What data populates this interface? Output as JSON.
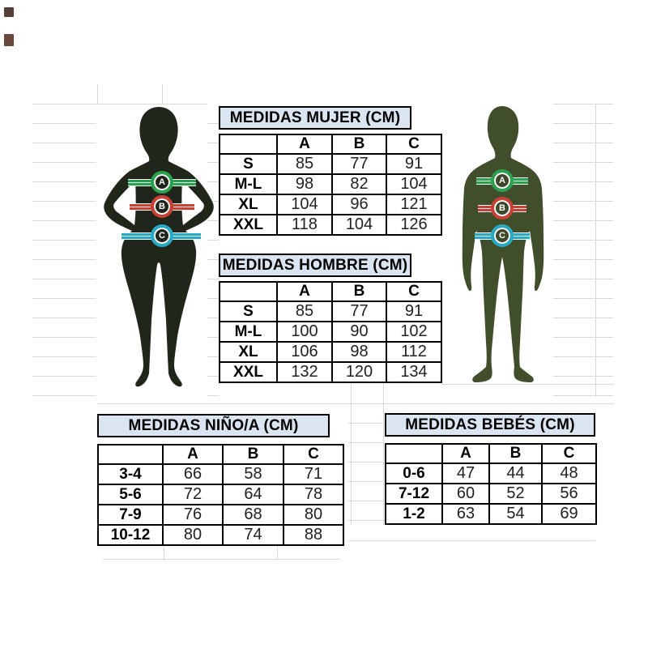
{
  "colors": {
    "table_title_fill": "#dbe5f1",
    "table_border": "#000000",
    "grid_line": "#d9d9d9",
    "band_a_green": "#2aa14f",
    "band_b_red": "#c84134",
    "band_c_cyan": "#28aac6",
    "female_silhouette": "#20261a",
    "male_silhouette": "#404e2c"
  },
  "figures": {
    "female": {
      "name": "female-silhouette",
      "bands": [
        {
          "label": "A"
        },
        {
          "label": "B"
        },
        {
          "label": "C"
        }
      ]
    },
    "male": {
      "name": "male-silhouette",
      "bands": [
        {
          "label": "A"
        },
        {
          "label": "B"
        },
        {
          "label": "C"
        }
      ]
    }
  },
  "tables": [
    {
      "id": "mujer",
      "title": "MEDIDAS MUJER (CM)",
      "columns": [
        "",
        "A",
        "B",
        "C"
      ],
      "rows": [
        [
          "S",
          "85",
          "77",
          "91"
        ],
        [
          "M-L",
          "98",
          "82",
          "104"
        ],
        [
          "XL",
          "104",
          "96",
          "121"
        ],
        [
          "XXL",
          "118",
          "104",
          "126"
        ]
      ]
    },
    {
      "id": "hombre",
      "title": "MEDIDAS HOMBRE (CM)",
      "columns": [
        "",
        "A",
        "B",
        "C"
      ],
      "rows": [
        [
          "S",
          "85",
          "77",
          "91"
        ],
        [
          "M-L",
          "100",
          "90",
          "102"
        ],
        [
          "XL",
          "106",
          "98",
          "112"
        ],
        [
          "XXL",
          "132",
          "120",
          "134"
        ]
      ]
    },
    {
      "id": "ninos",
      "title": "MEDIDAS NIÑO/A (CM)",
      "columns": [
        "",
        "A",
        "B",
        "C"
      ],
      "rows": [
        [
          "3-4",
          "66",
          "58",
          "71"
        ],
        [
          "5-6",
          "72",
          "64",
          "78"
        ],
        [
          "7-9",
          "76",
          "68",
          "80"
        ],
        [
          "10-12",
          "80",
          "74",
          "88"
        ]
      ]
    },
    {
      "id": "bebes",
      "title": "MEDIDAS BEBÉS (CM)",
      "columns": [
        "",
        "A",
        "B",
        "C"
      ],
      "rows": [
        [
          "0-6",
          "47",
          "44",
          "48"
        ],
        [
          "7-12",
          "60",
          "52",
          "56"
        ],
        [
          "1-2",
          "63",
          "54",
          "69"
        ]
      ]
    }
  ]
}
